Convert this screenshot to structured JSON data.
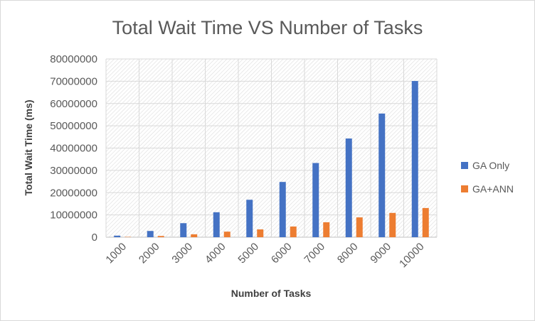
{
  "chart_data": {
    "type": "bar",
    "title": "Total Wait Time VS Number of Tasks",
    "xlabel": "Number of Tasks",
    "ylabel": "Total Wait Time (ms)",
    "categories": [
      "1000",
      "2000",
      "3000",
      "4000",
      "5000",
      "6000",
      "7000",
      "8000",
      "9000",
      "10000"
    ],
    "series": [
      {
        "name": "GA Only",
        "color": "#4472C4",
        "values": [
          700000,
          2800000,
          6300000,
          11200000,
          16800000,
          24800000,
          33300000,
          44300000,
          55500000,
          70100000
        ]
      },
      {
        "name": "GA+ANN",
        "color": "#ED7D31",
        "values": [
          150000,
          550000,
          1300000,
          2500000,
          3500000,
          4800000,
          6700000,
          8900000,
          10900000,
          13100000
        ]
      }
    ],
    "ylim": [
      0,
      80000000
    ],
    "yticks": [
      "0",
      "10000000",
      "20000000",
      "30000000",
      "40000000",
      "50000000",
      "60000000",
      "70000000",
      "80000000"
    ],
    "grid": true,
    "legend": "right"
  }
}
